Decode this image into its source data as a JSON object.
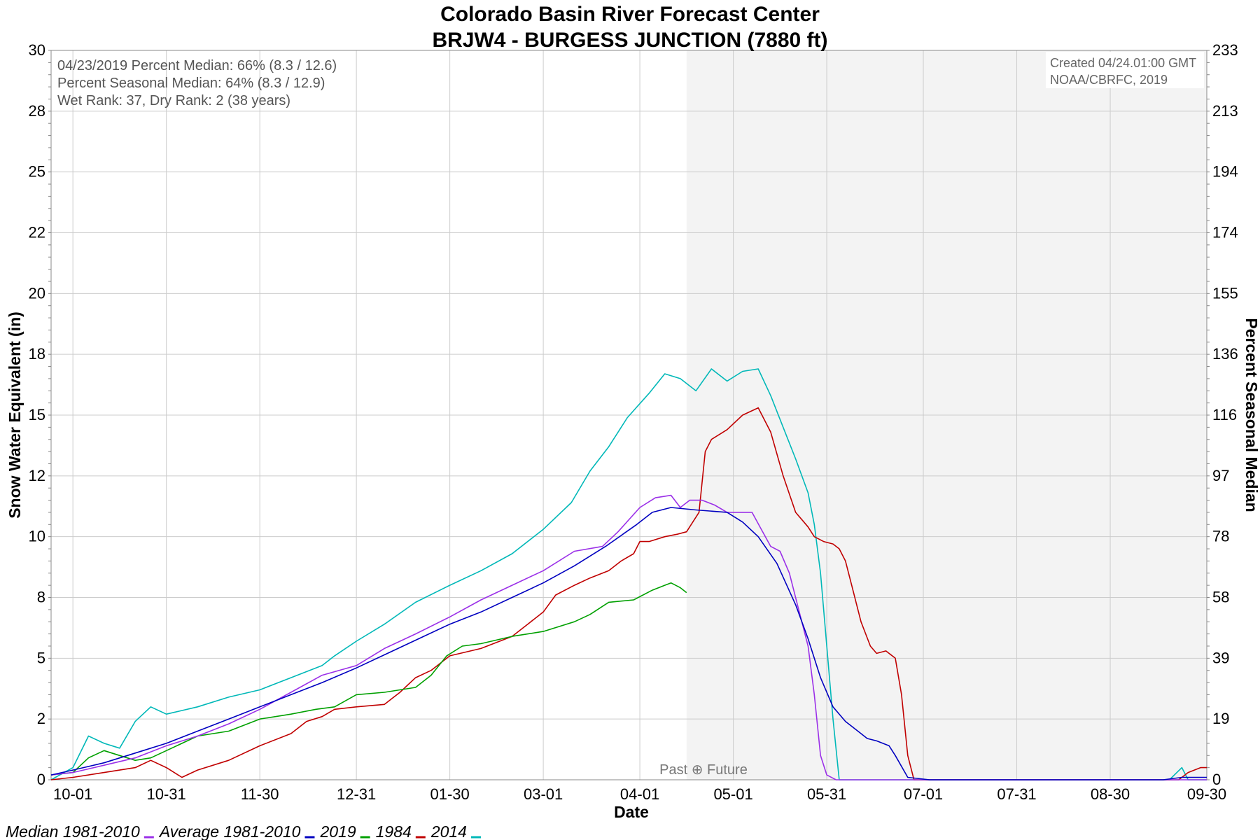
{
  "chart_data": {
    "type": "line",
    "title": "Colorado Basin River Forecast Center",
    "subtitle": "BRJW4 - BURGESS JUNCTION (7880 ft)",
    "xlabel": "Date",
    "ylabel": "Snow Water Equivalent (in)",
    "y2label": "Percent Seasonal Median",
    "x_ticks": [
      "10-01",
      "10-31",
      "11-30",
      "12-31",
      "01-30",
      "03-01",
      "04-01",
      "05-01",
      "05-31",
      "07-01",
      "07-31",
      "08-30",
      "09-30"
    ],
    "x_tick_days": [
      0,
      30,
      60,
      91,
      121,
      151,
      182,
      212,
      242,
      273,
      303,
      333,
      364
    ],
    "xlim_days": [
      -7,
      364
    ],
    "y_ticks": [
      {
        "v": 0,
        "t": "0"
      },
      {
        "v": 2.5,
        "t": "2"
      },
      {
        "v": 5,
        "t": "5"
      },
      {
        "v": 7.5,
        "t": "8"
      },
      {
        "v": 10,
        "t": "10"
      },
      {
        "v": 12.5,
        "t": "12"
      },
      {
        "v": 15,
        "t": "15"
      },
      {
        "v": 17.5,
        "t": "18"
      },
      {
        "v": 20,
        "t": "20"
      },
      {
        "v": 22.5,
        "t": "22"
      },
      {
        "v": 25,
        "t": "25"
      },
      {
        "v": 27.5,
        "t": "28"
      },
      {
        "v": 30,
        "t": "30"
      }
    ],
    "y2_ticks": [
      "0",
      "19",
      "39",
      "58",
      "78",
      "97",
      "116",
      "136",
      "155",
      "174",
      "194",
      "213",
      "233"
    ],
    "ylim": [
      0,
      30
    ],
    "grid": true,
    "forecast_start_day": 197,
    "past_future_label": "Past ⊕ Future",
    "info_lines": [
      "04/23/2019 Percent Median: 66% (8.3 / 12.6)",
      "Percent Seasonal Median: 64% (8.3 / 12.9)",
      "Wet Rank: 37, Dry Rank: 2  (38 years)"
    ],
    "created_lines": [
      "Created 04/24.01:00 GMT",
      "NOAA/CBRFC, 2019"
    ],
    "series": [
      {
        "name": "Median 1981-2010",
        "color": "#9b30e8",
        "points": [
          [
            -7,
            0.2
          ],
          [
            0,
            0.3
          ],
          [
            10,
            0.6
          ],
          [
            20,
            0.9
          ],
          [
            30,
            1.4
          ],
          [
            40,
            1.8
          ],
          [
            50,
            2.3
          ],
          [
            60,
            2.9
          ],
          [
            70,
            3.6
          ],
          [
            80,
            4.3
          ],
          [
            91,
            4.7
          ],
          [
            100,
            5.4
          ],
          [
            110,
            6.0
          ],
          [
            121,
            6.7
          ],
          [
            131,
            7.4
          ],
          [
            141,
            8.0
          ],
          [
            151,
            8.6
          ],
          [
            161,
            9.4
          ],
          [
            170,
            9.6
          ],
          [
            175,
            10.2
          ],
          [
            182,
            11.2
          ],
          [
            187,
            11.6
          ],
          [
            192,
            11.7
          ],
          [
            195,
            11.2
          ],
          [
            198,
            11.5
          ],
          [
            202,
            11.5
          ],
          [
            206,
            11.3
          ],
          [
            210,
            11.0
          ],
          [
            214,
            11.0
          ],
          [
            218,
            11.0
          ],
          [
            221,
            10.3
          ],
          [
            224,
            9.6
          ],
          [
            227,
            9.4
          ],
          [
            230,
            8.5
          ],
          [
            233,
            7.0
          ],
          [
            236,
            5.5
          ],
          [
            238,
            3.5
          ],
          [
            240,
            1.0
          ],
          [
            242,
            0.2
          ],
          [
            245,
            0.0
          ],
          [
            364,
            0.0
          ]
        ]
      },
      {
        "name": "Average 1981-2010",
        "color": "#0000c0",
        "points": [
          [
            -7,
            0.2
          ],
          [
            0,
            0.4
          ],
          [
            10,
            0.7
          ],
          [
            20,
            1.1
          ],
          [
            30,
            1.5
          ],
          [
            40,
            2.0
          ],
          [
            50,
            2.5
          ],
          [
            60,
            3.0
          ],
          [
            70,
            3.5
          ],
          [
            80,
            4.0
          ],
          [
            91,
            4.6
          ],
          [
            101,
            5.2
          ],
          [
            111,
            5.8
          ],
          [
            121,
            6.4
          ],
          [
            131,
            6.9
          ],
          [
            141,
            7.5
          ],
          [
            151,
            8.1
          ],
          [
            161,
            8.8
          ],
          [
            171,
            9.6
          ],
          [
            181,
            10.5
          ],
          [
            186,
            11.0
          ],
          [
            192,
            11.2
          ],
          [
            200,
            11.1
          ],
          [
            210,
            11.0
          ],
          [
            215,
            10.6
          ],
          [
            220,
            10.0
          ],
          [
            226,
            8.9
          ],
          [
            232,
            7.2
          ],
          [
            236,
            5.8
          ],
          [
            240,
            4.2
          ],
          [
            244,
            3.0
          ],
          [
            248,
            2.4
          ],
          [
            252,
            2.0
          ],
          [
            255,
            1.7
          ],
          [
            258,
            1.6
          ],
          [
            262,
            1.4
          ],
          [
            264,
            1.0
          ],
          [
            268,
            0.1
          ],
          [
            275,
            0.0
          ],
          [
            350,
            0.0
          ],
          [
            356,
            0.1
          ],
          [
            364,
            0.1
          ]
        ]
      },
      {
        "name": "2019",
        "color": "#00a000",
        "points": [
          [
            -7,
            0.2
          ],
          [
            0,
            0.3
          ],
          [
            5,
            0.9
          ],
          [
            10,
            1.2
          ],
          [
            15,
            1.0
          ],
          [
            20,
            0.8
          ],
          [
            25,
            0.9
          ],
          [
            30,
            1.2
          ],
          [
            40,
            1.8
          ],
          [
            50,
            2.0
          ],
          [
            60,
            2.5
          ],
          [
            70,
            2.7
          ],
          [
            78,
            2.9
          ],
          [
            84,
            3.0
          ],
          [
            91,
            3.5
          ],
          [
            100,
            3.6
          ],
          [
            110,
            3.8
          ],
          [
            115,
            4.3
          ],
          [
            120,
            5.1
          ],
          [
            125,
            5.5
          ],
          [
            131,
            5.6
          ],
          [
            141,
            5.9
          ],
          [
            151,
            6.1
          ],
          [
            161,
            6.5
          ],
          [
            166,
            6.8
          ],
          [
            172,
            7.3
          ],
          [
            180,
            7.4
          ],
          [
            186,
            7.8
          ],
          [
            190,
            8.0
          ],
          [
            192,
            8.1
          ],
          [
            195,
            7.9
          ],
          [
            197,
            7.7
          ]
        ]
      },
      {
        "name": "1984",
        "color": "#c00000",
        "points": [
          [
            -7,
            0.0
          ],
          [
            0,
            0.1
          ],
          [
            10,
            0.3
          ],
          [
            20,
            0.5
          ],
          [
            25,
            0.8
          ],
          [
            30,
            0.5
          ],
          [
            35,
            0.1
          ],
          [
            40,
            0.4
          ],
          [
            50,
            0.8
          ],
          [
            60,
            1.4
          ],
          [
            70,
            1.9
          ],
          [
            75,
            2.4
          ],
          [
            80,
            2.6
          ],
          [
            84,
            2.9
          ],
          [
            91,
            3.0
          ],
          [
            100,
            3.1
          ],
          [
            105,
            3.6
          ],
          [
            110,
            4.2
          ],
          [
            115,
            4.5
          ],
          [
            121,
            5.1
          ],
          [
            131,
            5.4
          ],
          [
            141,
            5.9
          ],
          [
            146,
            6.4
          ],
          [
            151,
            6.9
          ],
          [
            155,
            7.6
          ],
          [
            161,
            8.0
          ],
          [
            166,
            8.3
          ],
          [
            172,
            8.6
          ],
          [
            176,
            9.0
          ],
          [
            180,
            9.3
          ],
          [
            182,
            9.8
          ],
          [
            185,
            9.8
          ],
          [
            190,
            10.0
          ],
          [
            194,
            10.1
          ],
          [
            197,
            10.2
          ],
          [
            201,
            11.0
          ],
          [
            203,
            13.5
          ],
          [
            205,
            14.0
          ],
          [
            210,
            14.4
          ],
          [
            215,
            15.0
          ],
          [
            220,
            15.3
          ],
          [
            224,
            14.3
          ],
          [
            228,
            12.5
          ],
          [
            232,
            11.0
          ],
          [
            236,
            10.4
          ],
          [
            238,
            10.0
          ],
          [
            241,
            9.8
          ],
          [
            244,
            9.7
          ],
          [
            246,
            9.5
          ],
          [
            248,
            9.0
          ],
          [
            250,
            8.0
          ],
          [
            253,
            6.5
          ],
          [
            256,
            5.5
          ],
          [
            258,
            5.2
          ],
          [
            261,
            5.3
          ],
          [
            264,
            5.0
          ],
          [
            266,
            3.5
          ],
          [
            268,
            1.0
          ],
          [
            270,
            0.0
          ],
          [
            355,
            0.0
          ],
          [
            358,
            0.3
          ],
          [
            362,
            0.5
          ],
          [
            364,
            0.5
          ]
        ]
      },
      {
        "name": "2014",
        "color": "#00b8b8",
        "points": [
          [
            -7,
            0.0
          ],
          [
            0,
            0.5
          ],
          [
            5,
            1.8
          ],
          [
            10,
            1.5
          ],
          [
            15,
            1.3
          ],
          [
            20,
            2.4
          ],
          [
            25,
            3.0
          ],
          [
            30,
            2.7
          ],
          [
            40,
            3.0
          ],
          [
            50,
            3.4
          ],
          [
            60,
            3.7
          ],
          [
            70,
            4.2
          ],
          [
            80,
            4.7
          ],
          [
            84,
            5.1
          ],
          [
            91,
            5.7
          ],
          [
            100,
            6.4
          ],
          [
            110,
            7.3
          ],
          [
            121,
            8.0
          ],
          [
            131,
            8.6
          ],
          [
            141,
            9.3
          ],
          [
            151,
            10.3
          ],
          [
            160,
            11.4
          ],
          [
            166,
            12.7
          ],
          [
            172,
            13.7
          ],
          [
            178,
            14.9
          ],
          [
            185,
            15.9
          ],
          [
            190,
            16.7
          ],
          [
            195,
            16.5
          ],
          [
            200,
            16.0
          ],
          [
            205,
            16.9
          ],
          [
            210,
            16.4
          ],
          [
            215,
            16.8
          ],
          [
            220,
            16.9
          ],
          [
            224,
            15.8
          ],
          [
            228,
            14.5
          ],
          [
            232,
            13.2
          ],
          [
            236,
            11.8
          ],
          [
            238,
            10.5
          ],
          [
            240,
            8.5
          ],
          [
            242,
            5.5
          ],
          [
            244,
            2.5
          ],
          [
            246,
            0.0
          ],
          [
            352,
            0.0
          ],
          [
            356,
            0.5
          ],
          [
            358,
            0.0
          ],
          [
            364,
            0.0
          ]
        ]
      }
    ]
  }
}
